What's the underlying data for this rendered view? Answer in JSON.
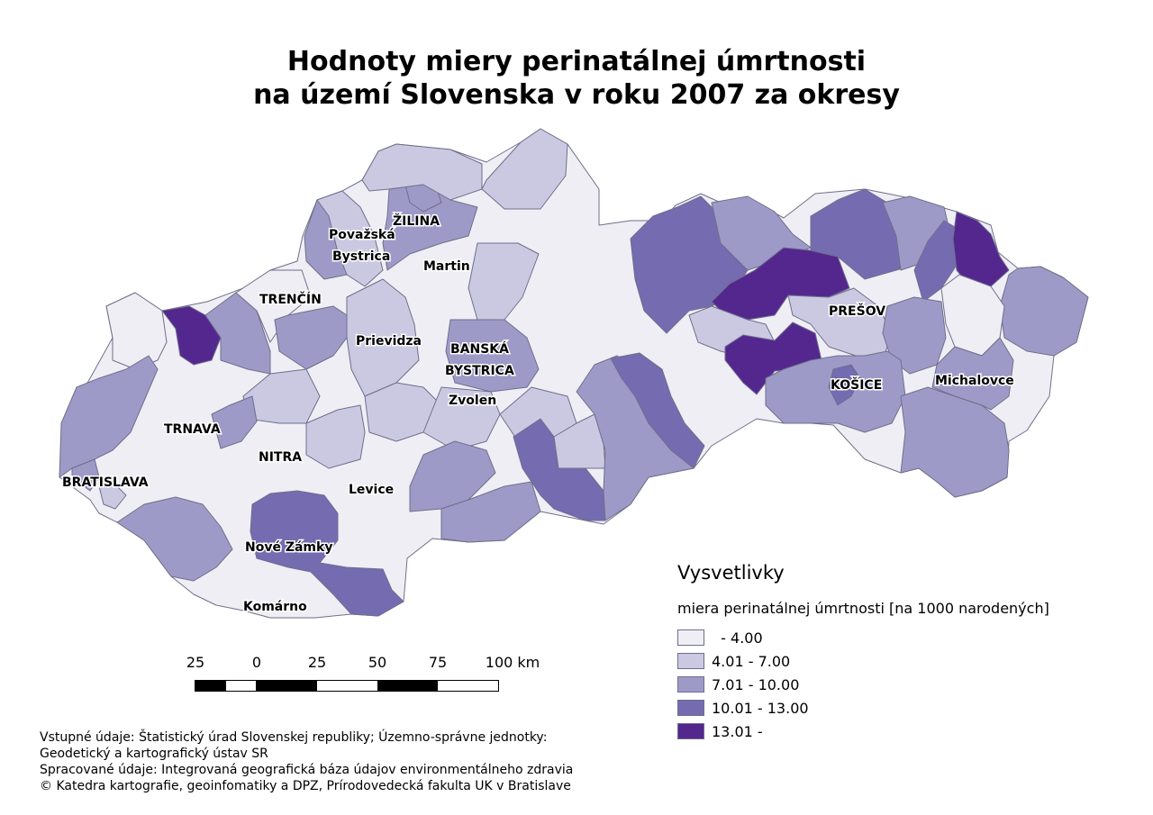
{
  "title": {
    "line1": "Hodnoty miery perinatálnej úmrtnosti",
    "line2": "na území Slovenska v roku 2007 za okresy"
  },
  "map": {
    "country": "Slovakia",
    "city_labels": [
      "ŽILINA",
      "Považská",
      "Bystrica",
      "Martin",
      "TRENČÍN",
      "Prievidza",
      "BANSKÁ",
      "BYSTRICA",
      "Zvolen",
      "PREŠOV",
      "KOŠICE",
      "Michalovce",
      "TRNAVA",
      "NITRA",
      "BRATISLAVA",
      "Levice",
      "Nové Zámky",
      "Komárno"
    ],
    "colors": {
      "class1": "#efeef5",
      "class2": "#cbc9e2",
      "class3": "#9e9ac8",
      "class4": "#756bb1",
      "class5": "#54278f",
      "border": "#6f6f8a"
    }
  },
  "legend": {
    "title": "Vysvetlivky",
    "subtitle": "miera perinatálnej úmrtnosti [na 1000 narodených]",
    "classes": [
      {
        "label": "  - 4.00",
        "color": "#efeef5"
      },
      {
        "label": "4.01 - 7.00",
        "color": "#cbc9e2"
      },
      {
        "label": "7.01 - 10.00",
        "color": "#9e9ac8"
      },
      {
        "label": "10.01 - 13.00",
        "color": "#756bb1"
      },
      {
        "label": "13.01 -",
        "color": "#54278f"
      }
    ]
  },
  "scale": {
    "labels": [
      "25",
      "0",
      "25",
      "50",
      "75",
      "100 km"
    ]
  },
  "footer": {
    "line1": "Vstupné údaje: Štatistický úrad Slovenskej republiky; Územno-správne jednotky:",
    "line2": "Geodetický a kartografický ústav SR",
    "line3": "Spracované údaje: Integrovaná geografická báza údajov environmentálneho zdravia",
    "line4": "© Katedra kartografie, geoinfomatiky a DPZ, Prírodovedecká fakulta UK v Bratislave"
  }
}
